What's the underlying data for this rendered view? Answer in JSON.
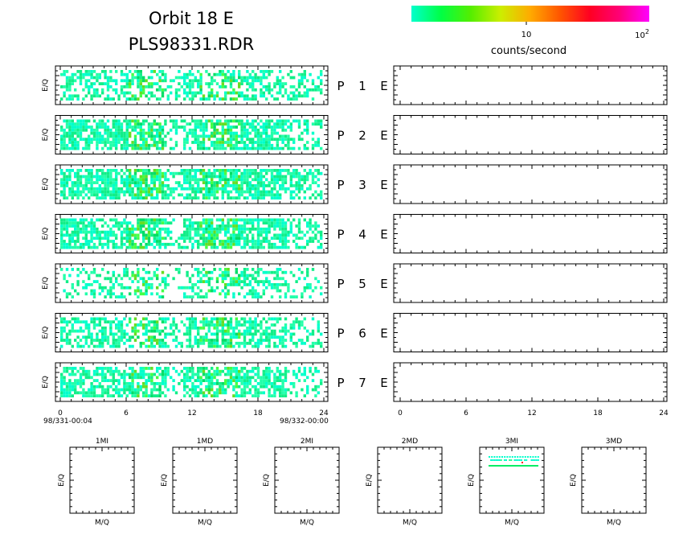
{
  "header": {
    "title": "Orbit 18 E",
    "subtitle": "PLS98331.RDR"
  },
  "colorbar": {
    "colors": [
      "#00ffcc",
      "#00ff44",
      "#55ee00",
      "#ccee00",
      "#ffaa00",
      "#ff5500",
      "#ff0022",
      "#ff0077",
      "#ff00ff"
    ],
    "tick_10": "10",
    "tick_100_base": "10",
    "tick_100_exp": "2",
    "label": "counts/second"
  },
  "chart_data": [
    {
      "type": "heatmap",
      "description_of_axes": "time-of-day (hours) vs E/Q per ion panel",
      "ylabel": "E/Q",
      "xlim": [
        0,
        24
      ],
      "x_ticks": [
        "0",
        "6",
        "12",
        "18",
        "24"
      ],
      "x_start_label": "98/331-00:04",
      "x_end_label": "98/332-00:00",
      "panels": [
        {
          "letter": "P",
          "number": "1",
          "suffix": "E",
          "density": 0.55
        },
        {
          "letter": "P",
          "number": "2",
          "suffix": "E",
          "density": 0.75
        },
        {
          "letter": "P",
          "number": "3",
          "suffix": "E",
          "density": 0.78
        },
        {
          "letter": "P",
          "number": "4",
          "suffix": "E",
          "density": 0.72
        },
        {
          "letter": "P",
          "number": "5",
          "suffix": "E",
          "density": 0.42
        },
        {
          "letter": "P",
          "number": "6",
          "suffix": "E",
          "density": 0.6
        },
        {
          "letter": "P",
          "number": "7",
          "suffix": "E",
          "density": 0.66
        }
      ]
    },
    {
      "type": "heatmap",
      "xlim": [
        0,
        24
      ],
      "x_ticks": [
        "0",
        "6",
        "12",
        "18",
        "24"
      ],
      "panels": 7,
      "values": "empty"
    },
    {
      "type": "heatmap",
      "xlabel": "M/Q",
      "ylabel": "E/Q",
      "panels": [
        {
          "title": "1MI",
          "has_data": false
        },
        {
          "title": "1MD",
          "has_data": false
        },
        {
          "title": "2MI",
          "has_data": false
        },
        {
          "title": "2MD",
          "has_data": false
        },
        {
          "title": "3MI",
          "has_data": true
        },
        {
          "title": "3MD",
          "has_data": false
        }
      ]
    }
  ]
}
